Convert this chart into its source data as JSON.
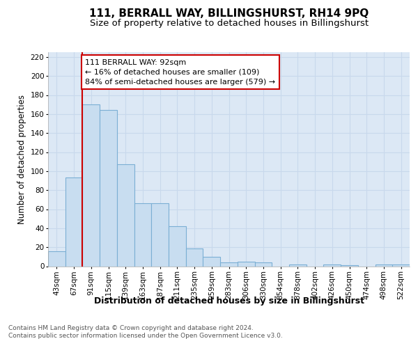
{
  "title": "111, BERRALL WAY, BILLINGSHURST, RH14 9PQ",
  "subtitle": "Size of property relative to detached houses in Billingshurst",
  "xlabel": "Distribution of detached houses by size in Billingshurst",
  "ylabel": "Number of detached properties",
  "categories": [
    "43sqm",
    "67sqm",
    "91sqm",
    "115sqm",
    "139sqm",
    "163sqm",
    "187sqm",
    "211sqm",
    "235sqm",
    "259sqm",
    "283sqm",
    "306sqm",
    "330sqm",
    "354sqm",
    "378sqm",
    "402sqm",
    "426sqm",
    "450sqm",
    "474sqm",
    "498sqm",
    "522sqm"
  ],
  "values": [
    16,
    93,
    170,
    164,
    107,
    66,
    66,
    42,
    19,
    10,
    4,
    5,
    4,
    0,
    2,
    0,
    2,
    1,
    0,
    2,
    2
  ],
  "bar_color": "#c8ddf0",
  "bar_edge_color": "#7bafd4",
  "vline_color": "#cc0000",
  "annotation_text": "111 BERRALL WAY: 92sqm\n← 16% of detached houses are smaller (109)\n84% of semi-detached houses are larger (579) →",
  "annotation_box_color": "#ffffff",
  "annotation_box_edge_color": "#cc0000",
  "grid_color": "#c8d8ec",
  "background_color": "#ffffff",
  "plot_bg_color": "#dce8f5",
  "ylim": [
    0,
    225
  ],
  "yticks": [
    0,
    20,
    40,
    60,
    80,
    100,
    120,
    140,
    160,
    180,
    200,
    220
  ],
  "title_fontsize": 11,
  "subtitle_fontsize": 9.5,
  "xlabel_fontsize": 9,
  "ylabel_fontsize": 8.5,
  "tick_fontsize": 7.5,
  "annot_fontsize": 8,
  "footnote_fontsize": 6.5,
  "footnote": "Contains HM Land Registry data © Crown copyright and database right 2024.\nContains public sector information licensed under the Open Government Licence v3.0."
}
